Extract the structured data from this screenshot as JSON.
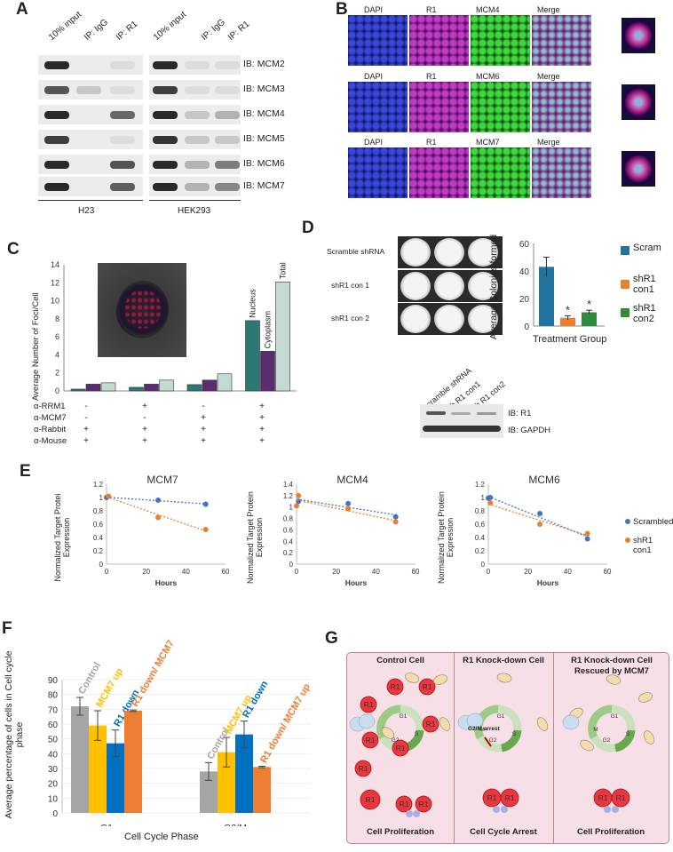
{
  "panels": {
    "A": "A",
    "B": "B",
    "C": "C",
    "D": "D",
    "E": "E",
    "F": "F",
    "G": "G"
  },
  "panel_a": {
    "lanes": [
      "10% input",
      "IP: IgG",
      "IP: R1",
      "10% input",
      "IP: IgG",
      "IP: R1"
    ],
    "ib_labels": [
      "IB: MCM2",
      "IB: MCM3",
      "IB: MCM4",
      "IB: MCM5",
      "IB: MCM6",
      "IB: MCM7"
    ],
    "cell_lines": [
      "H23",
      "HEK293"
    ]
  },
  "panel_b": {
    "rows": [
      {
        "labels": [
          "DAPI",
          "R1",
          "MCM4",
          "Merge"
        ]
      },
      {
        "labels": [
          "DAPI",
          "R1",
          "MCM6",
          "Merge"
        ]
      },
      {
        "labels": [
          "DAPI",
          "R1",
          "MCM7",
          "Merge"
        ]
      }
    ]
  },
  "panel_c": {
    "ylabel": "Average Number of Foci/Cell",
    "bar_labels": [
      "Nucleus",
      "Cytoplasm",
      "Total"
    ],
    "row_labels": [
      "α-RRM1",
      "α-MCM7",
      "α-Rabbit",
      "α-Mouse"
    ],
    "signs": [
      [
        "-",
        "+",
        "-",
        "+"
      ],
      [
        "-",
        "-",
        "+",
        "+"
      ],
      [
        "+",
        "+",
        "+",
        "+"
      ],
      [
        "+",
        "+",
        "+",
        "+"
      ]
    ]
  },
  "panel_d": {
    "plate_labels": [
      "Scramble shRNA",
      "shR1 con 1",
      "shR1 con 2"
    ],
    "chart_ylabel": "Average Colonies formed",
    "chart_xlabel": "Treatment Group",
    "legend": [
      "Scram",
      "shR1 con1",
      "shR1 con2"
    ],
    "star": "*",
    "blot_lanes": [
      "Scramble shRNA",
      "sh R1 con1",
      "sh R1 con2"
    ],
    "blot_labels": [
      "IB: R1",
      "IB: GAPDH"
    ]
  },
  "panel_e": {
    "ylabel_a": "Normalized Target Protei Expression",
    "ylabel_b": "Normalized Target Protein Expression",
    "xlabel": "Hours",
    "legend": [
      "Scrambled",
      "shR1 con1"
    ]
  },
  "panel_f": {
    "ylabel": "Average percentage of cells in Cell cycle phase",
    "xlabel": "Cell Cycle Phase",
    "bar_labels": [
      "Control",
      "MCM7 up",
      "R1 down",
      "R1 down/ MCM7 up"
    ]
  },
  "panel_g": {
    "titles": [
      "Control Cell",
      "R1 Knock-down Cell",
      "R1 Knock-down Cell Rescued by MCM7"
    ],
    "footers": [
      "Cell Proliferation",
      "Cell Cycle Arrest",
      "Cell Proliferation"
    ],
    "r1": "R1",
    "arrest": "G2/M arrest",
    "phases": [
      "G1",
      "S",
      "G2",
      "M"
    ]
  },
  "chart_data": [
    {
      "id": "C",
      "type": "bar",
      "categories": [
        "1",
        "2",
        "3",
        "4"
      ],
      "series": [
        {
          "name": "Nucleus",
          "values": [
            0.2,
            0.4,
            0.7,
            7.8
          ],
          "color": "#2e7873"
        },
        {
          "name": "Cytoplasm",
          "values": [
            0.75,
            0.75,
            1.2,
            4.4
          ],
          "color": "#5b2c6f"
        },
        {
          "name": "Total",
          "values": [
            0.9,
            1.2,
            1.9,
            12.1
          ],
          "color": "#c3d9d2"
        }
      ],
      "yticks": [
        0,
        2,
        4,
        6,
        8,
        10,
        12,
        14
      ],
      "ylim": [
        0,
        14
      ]
    },
    {
      "id": "D",
      "type": "bar",
      "categories": [
        "Scram",
        "shR1 con1",
        "shR1 con2"
      ],
      "values": [
        43,
        6,
        10
      ],
      "errors": [
        7,
        1.5,
        1.5
      ],
      "colors": [
        "#2273a0",
        "#ed7d31",
        "#2e8b3f"
      ],
      "yticks": [
        0,
        20,
        40,
        60
      ],
      "ylim": [
        0,
        60
      ]
    },
    {
      "id": "E1",
      "type": "scatter",
      "title": "MCM7",
      "x": [
        0,
        1,
        26,
        50
      ],
      "series": [
        {
          "name": "Scrambled",
          "x": [
            0,
            26,
            50
          ],
          "y": [
            1.0,
            0.96,
            0.9
          ],
          "color": "#4472c4"
        },
        {
          "name": "shR1 con1",
          "x": [
            1,
            26,
            50
          ],
          "y": [
            1.02,
            0.7,
            0.52
          ],
          "color": "#ed7d31"
        }
      ],
      "yticks": [
        0,
        0.2,
        0.4,
        0.6,
        0.8,
        1,
        1.2
      ],
      "ylim": [
        0,
        1.2
      ],
      "xticks": [
        0,
        20,
        40,
        60
      ],
      "xlim": [
        0,
        60
      ]
    },
    {
      "id": "E2",
      "type": "scatter",
      "title": "MCM4",
      "series": [
        {
          "name": "Scrambled",
          "x": [
            1,
            26,
            50
          ],
          "y": [
            1.1,
            1.06,
            0.83
          ],
          "color": "#4472c4"
        },
        {
          "name": "shR1 con1",
          "x": [
            0,
            1,
            26,
            50
          ],
          "y": [
            1.02,
            1.2,
            0.97,
            0.74
          ],
          "color": "#ed7d31"
        }
      ],
      "yticks": [
        0,
        0.2,
        0.4,
        0.6,
        0.8,
        1,
        1.2,
        1.4
      ],
      "ylim": [
        0,
        1.4
      ],
      "xticks": [
        0,
        20,
        40,
        60
      ],
      "xlim": [
        0,
        60
      ]
    },
    {
      "id": "E3",
      "type": "scatter",
      "title": "MCM6",
      "series": [
        {
          "name": "Scrambled",
          "x": [
            0,
            1,
            26,
            50
          ],
          "y": [
            0.99,
            1.0,
            0.76,
            0.38
          ],
          "color": "#4472c4"
        },
        {
          "name": "shR1 con1",
          "x": [
            1,
            26,
            50
          ],
          "y": [
            0.92,
            0.6,
            0.46
          ],
          "color": "#ed7d31"
        }
      ],
      "yticks": [
        0,
        0.2,
        0.4,
        0.6,
        0.8,
        1,
        1.2
      ],
      "ylim": [
        0,
        1.2
      ],
      "xticks": [
        0,
        20,
        40,
        60
      ],
      "xlim": [
        0,
        60
      ]
    },
    {
      "id": "F",
      "type": "bar",
      "categories": [
        "G1",
        "G2/M"
      ],
      "series": [
        {
          "name": "Control",
          "values": [
            72,
            28
          ],
          "errors": [
            6,
            6
          ],
          "color": "#a5a5a5"
        },
        {
          "name": "MCM7 up",
          "values": [
            59,
            41
          ],
          "errors": [
            10,
            10
          ],
          "color": "#ffc000"
        },
        {
          "name": "R1 down",
          "values": [
            47,
            53
          ],
          "errors": [
            9,
            9
          ],
          "color": "#0070c0"
        },
        {
          "name": "R1 down/ MCM7 up",
          "values": [
            69,
            31
          ],
          "errors": [
            0.5,
            0.5
          ],
          "color": "#ed7d31"
        }
      ],
      "yticks": [
        0,
        10,
        20,
        30,
        40,
        50,
        60,
        70,
        80,
        90
      ],
      "ylim": [
        0,
        90
      ]
    }
  ]
}
